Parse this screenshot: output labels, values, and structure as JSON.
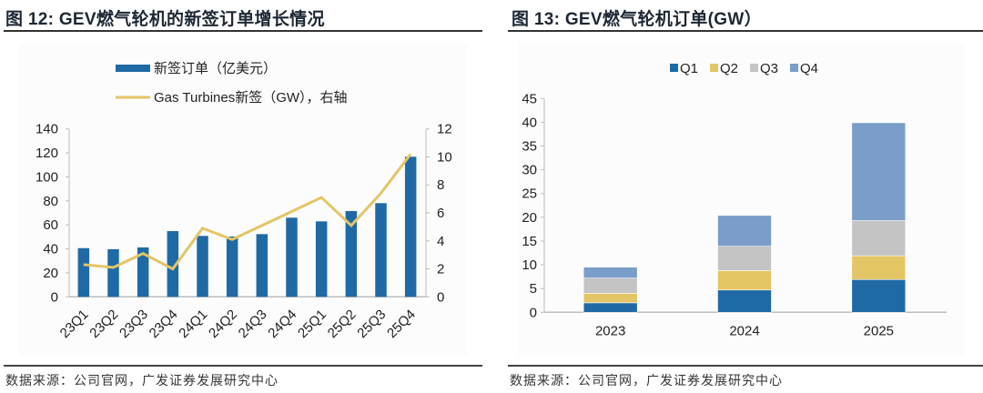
{
  "figures": {
    "left": {
      "title": "图 12: GEV燃气轮机的新签订单增长情况",
      "source": "数据来源：公司官网，广发证券发展研究中心"
    },
    "right": {
      "title": "图 13: GEV燃气轮机订单(GW）",
      "source": "数据来源：公司官网，广发证券发展研究中心"
    }
  },
  "chart_data": [
    {
      "type": "bar+line",
      "title": "GEV燃气轮机的新签订单增长情况",
      "categories": [
        "23Q1",
        "23Q2",
        "23Q3",
        "23Q4",
        "24Q1",
        "24Q2",
        "24Q3",
        "24Q4",
        "25Q1",
        "25Q2",
        "25Q3",
        "25Q4"
      ],
      "series": [
        {
          "name": "新签订单（亿美元）",
          "type": "bar",
          "axis": "left",
          "color": "#1f6aa5",
          "values": [
            40.6,
            39.7,
            41.2,
            54.8,
            50.8,
            50.3,
            52.3,
            66.0,
            62.9,
            71.5,
            78.1,
            116.8
          ]
        },
        {
          "name": "Gas Turbines新签（GW），右轴",
          "type": "line",
          "axis": "right",
          "color": "#e3c565",
          "values": [
            2.3,
            2.1,
            3.1,
            2.0,
            4.9,
            4.1,
            5.1,
            6.1,
            7.1,
            5.1,
            7.4,
            10.2
          ]
        }
      ],
      "y_left": {
        "min": 0,
        "max": 140,
        "ticks": [
          0,
          20,
          40,
          60,
          80,
          100,
          120,
          140
        ]
      },
      "y_right": {
        "min": 0,
        "max": 12,
        "ticks": [
          0,
          2,
          4,
          6,
          8,
          10,
          12
        ]
      },
      "xlabel": "",
      "ylabel": "",
      "grid": false,
      "legend_position": "top-center"
    },
    {
      "type": "bar",
      "stacked": true,
      "title": "GEV燃气轮机订单(GW）",
      "categories": [
        "2023",
        "2024",
        "2025"
      ],
      "series": [
        {
          "name": "Q1",
          "color": "#1f6aa5",
          "values": [
            2.0,
            4.7,
            6.9
          ]
        },
        {
          "name": "Q2",
          "color": "#e3c565",
          "values": [
            2.0,
            4.1,
            5.0
          ]
        },
        {
          "name": "Q3",
          "color": "#c4c4c4",
          "values": [
            3.2,
            5.1,
            7.4
          ]
        },
        {
          "name": "Q4",
          "color": "#7a9dc9",
          "values": [
            2.3,
            6.5,
            20.6
          ]
        }
      ],
      "y": {
        "min": 0,
        "max": 45,
        "ticks": [
          0,
          5,
          10,
          15,
          20,
          25,
          30,
          35,
          40,
          45
        ]
      },
      "xlabel": "",
      "ylabel": "",
      "grid": false,
      "legend_position": "top-center"
    }
  ]
}
